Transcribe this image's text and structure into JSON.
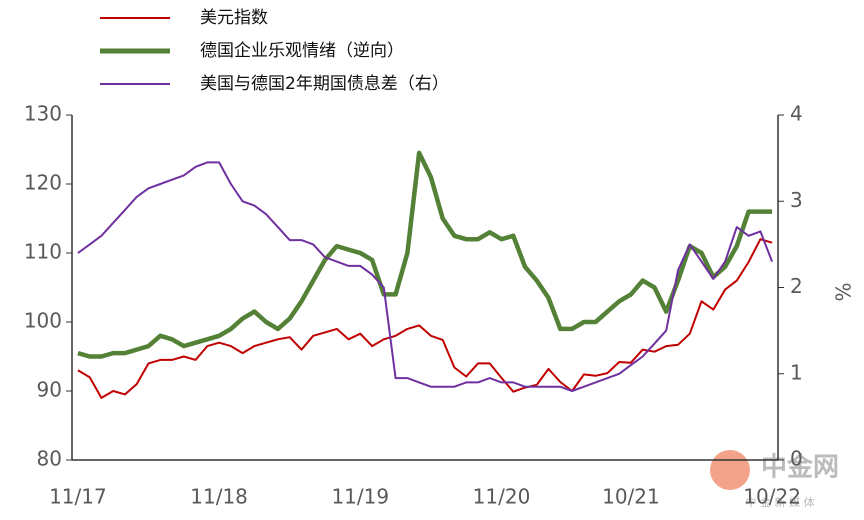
{
  "chart_data": {
    "type": "line",
    "categories": [
      "11/17",
      null,
      null,
      null,
      null,
      null,
      null,
      null,
      null,
      null,
      null,
      null,
      "11/18",
      null,
      null,
      null,
      null,
      null,
      null,
      null,
      null,
      null,
      null,
      null,
      "11/19",
      null,
      null,
      null,
      null,
      null,
      null,
      null,
      null,
      null,
      null,
      null,
      "11/20",
      null,
      null,
      null,
      null,
      null,
      null,
      null,
      null,
      null,
      null,
      "10/21",
      null,
      null,
      null,
      null,
      null,
      null,
      null,
      null,
      null,
      null,
      null,
      "10/22"
    ],
    "series": [
      {
        "name": "美元指数",
        "color": "#c00000",
        "axis": "y",
        "values": [
          93,
          92,
          89,
          90,
          89.5,
          91,
          94,
          94.5,
          94.5,
          95,
          94.5,
          96.5,
          97,
          96.5,
          95.5,
          96.5,
          97,
          97.5,
          97.8,
          96,
          98,
          98.5,
          99,
          97.5,
          98.3,
          96.5,
          97.5,
          98,
          99,
          99.5,
          98,
          97.4,
          93.4,
          92.1,
          94,
          94,
          91.9,
          89.9,
          90.5,
          90.9,
          93.2,
          91.3,
          90,
          92.4,
          92.2,
          92.6,
          94.2,
          94.1,
          96,
          95.7,
          96.5,
          96.7,
          98.3,
          103,
          101.8,
          104.7,
          106,
          108.7,
          112,
          111.5
        ]
      },
      {
        "name": "德国企业乐观情绪（逆向）",
        "color": "#538135",
        "axis": "y",
        "values": [
          95.5,
          95,
          95,
          95.5,
          95.5,
          96,
          96.5,
          98,
          97.5,
          96.5,
          97,
          97.5,
          98,
          99,
          100.5,
          101.5,
          100,
          99,
          100.5,
          103,
          106,
          109,
          111,
          110.5,
          110,
          109,
          104,
          104,
          110,
          124.5,
          121,
          115,
          112.5,
          112,
          112,
          113,
          112,
          112.5,
          108,
          106,
          103.5,
          99,
          99,
          100,
          100,
          101.5,
          103,
          104,
          106,
          105,
          101.5,
          106,
          111,
          110,
          106.5,
          108,
          111,
          116,
          116,
          116
        ]
      },
      {
        "name": "美国与德国2年期国债息差（右）",
        "color": "#7030a0",
        "axis": "y2",
        "values": [
          2.4,
          2.5,
          2.6,
          2.75,
          2.9,
          3.05,
          3.15,
          3.2,
          3.25,
          3.3,
          3.4,
          3.45,
          3.45,
          3.2,
          3.0,
          2.95,
          2.85,
          2.7,
          2.55,
          2.55,
          2.5,
          2.35,
          2.3,
          2.25,
          2.25,
          2.15,
          2.0,
          0.95,
          0.95,
          0.9,
          0.85,
          0.85,
          0.85,
          0.9,
          0.9,
          0.95,
          0.9,
          0.9,
          0.85,
          0.85,
          0.85,
          0.85,
          0.8,
          0.85,
          0.9,
          0.95,
          1.0,
          1.1,
          1.2,
          1.35,
          1.5,
          2.2,
          2.5,
          2.3,
          2.1,
          2.3,
          2.7,
          2.6,
          2.65,
          2.3
        ]
      }
    ],
    "ylim": [
      80,
      130
    ],
    "yticks": [
      80,
      90,
      100,
      110,
      120,
      130
    ],
    "y2lim": [
      0,
      4
    ],
    "y2ticks": [
      0,
      1,
      2,
      3,
      4
    ],
    "y2label": "%",
    "watermark": "中金网",
    "watermark_sub": "中 金 新 媒 体"
  }
}
